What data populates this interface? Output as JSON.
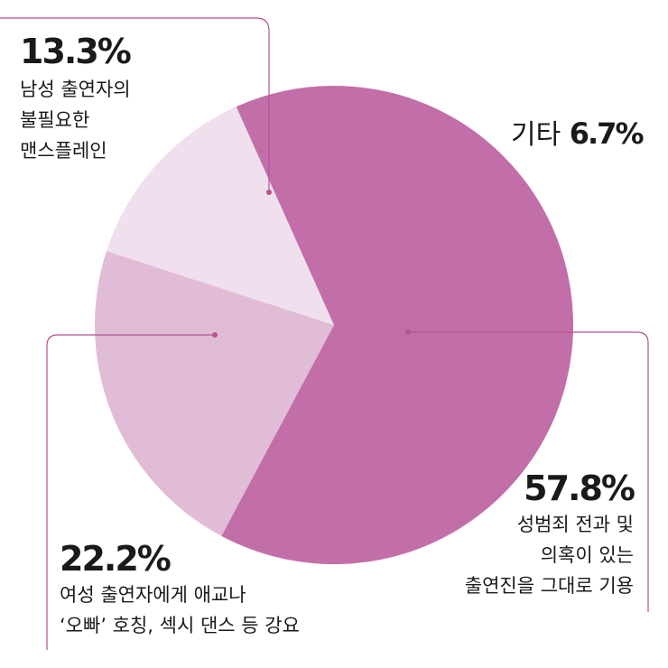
{
  "chart_data": {
    "type": "pie",
    "title": "",
    "slices": [
      {
        "percent": 57.8,
        "value_label": "57.8%",
        "label": "성범죄 전과 및\n의혹이 있는\n출연진을 그대로 기용",
        "color": "#c26ea9"
      },
      {
        "percent": 22.2,
        "value_label": "22.2%",
        "label": "여성 출연자에게 애교나\n‘오빠’ 호칭, 섹시 댄스 등 강요",
        "color": "#e1bcd7"
      },
      {
        "percent": 13.3,
        "value_label": "13.3%",
        "label": "남성 출연자의\n불필요한\n맨스플레인",
        "color": "#f0e0ed"
      },
      {
        "percent": 6.7,
        "value_label": "6.7%",
        "label": "기타",
        "color": "#c26ea9"
      }
    ],
    "start_angle_deg": 0,
    "leader_color": "#b5528f",
    "legend": "none"
  }
}
